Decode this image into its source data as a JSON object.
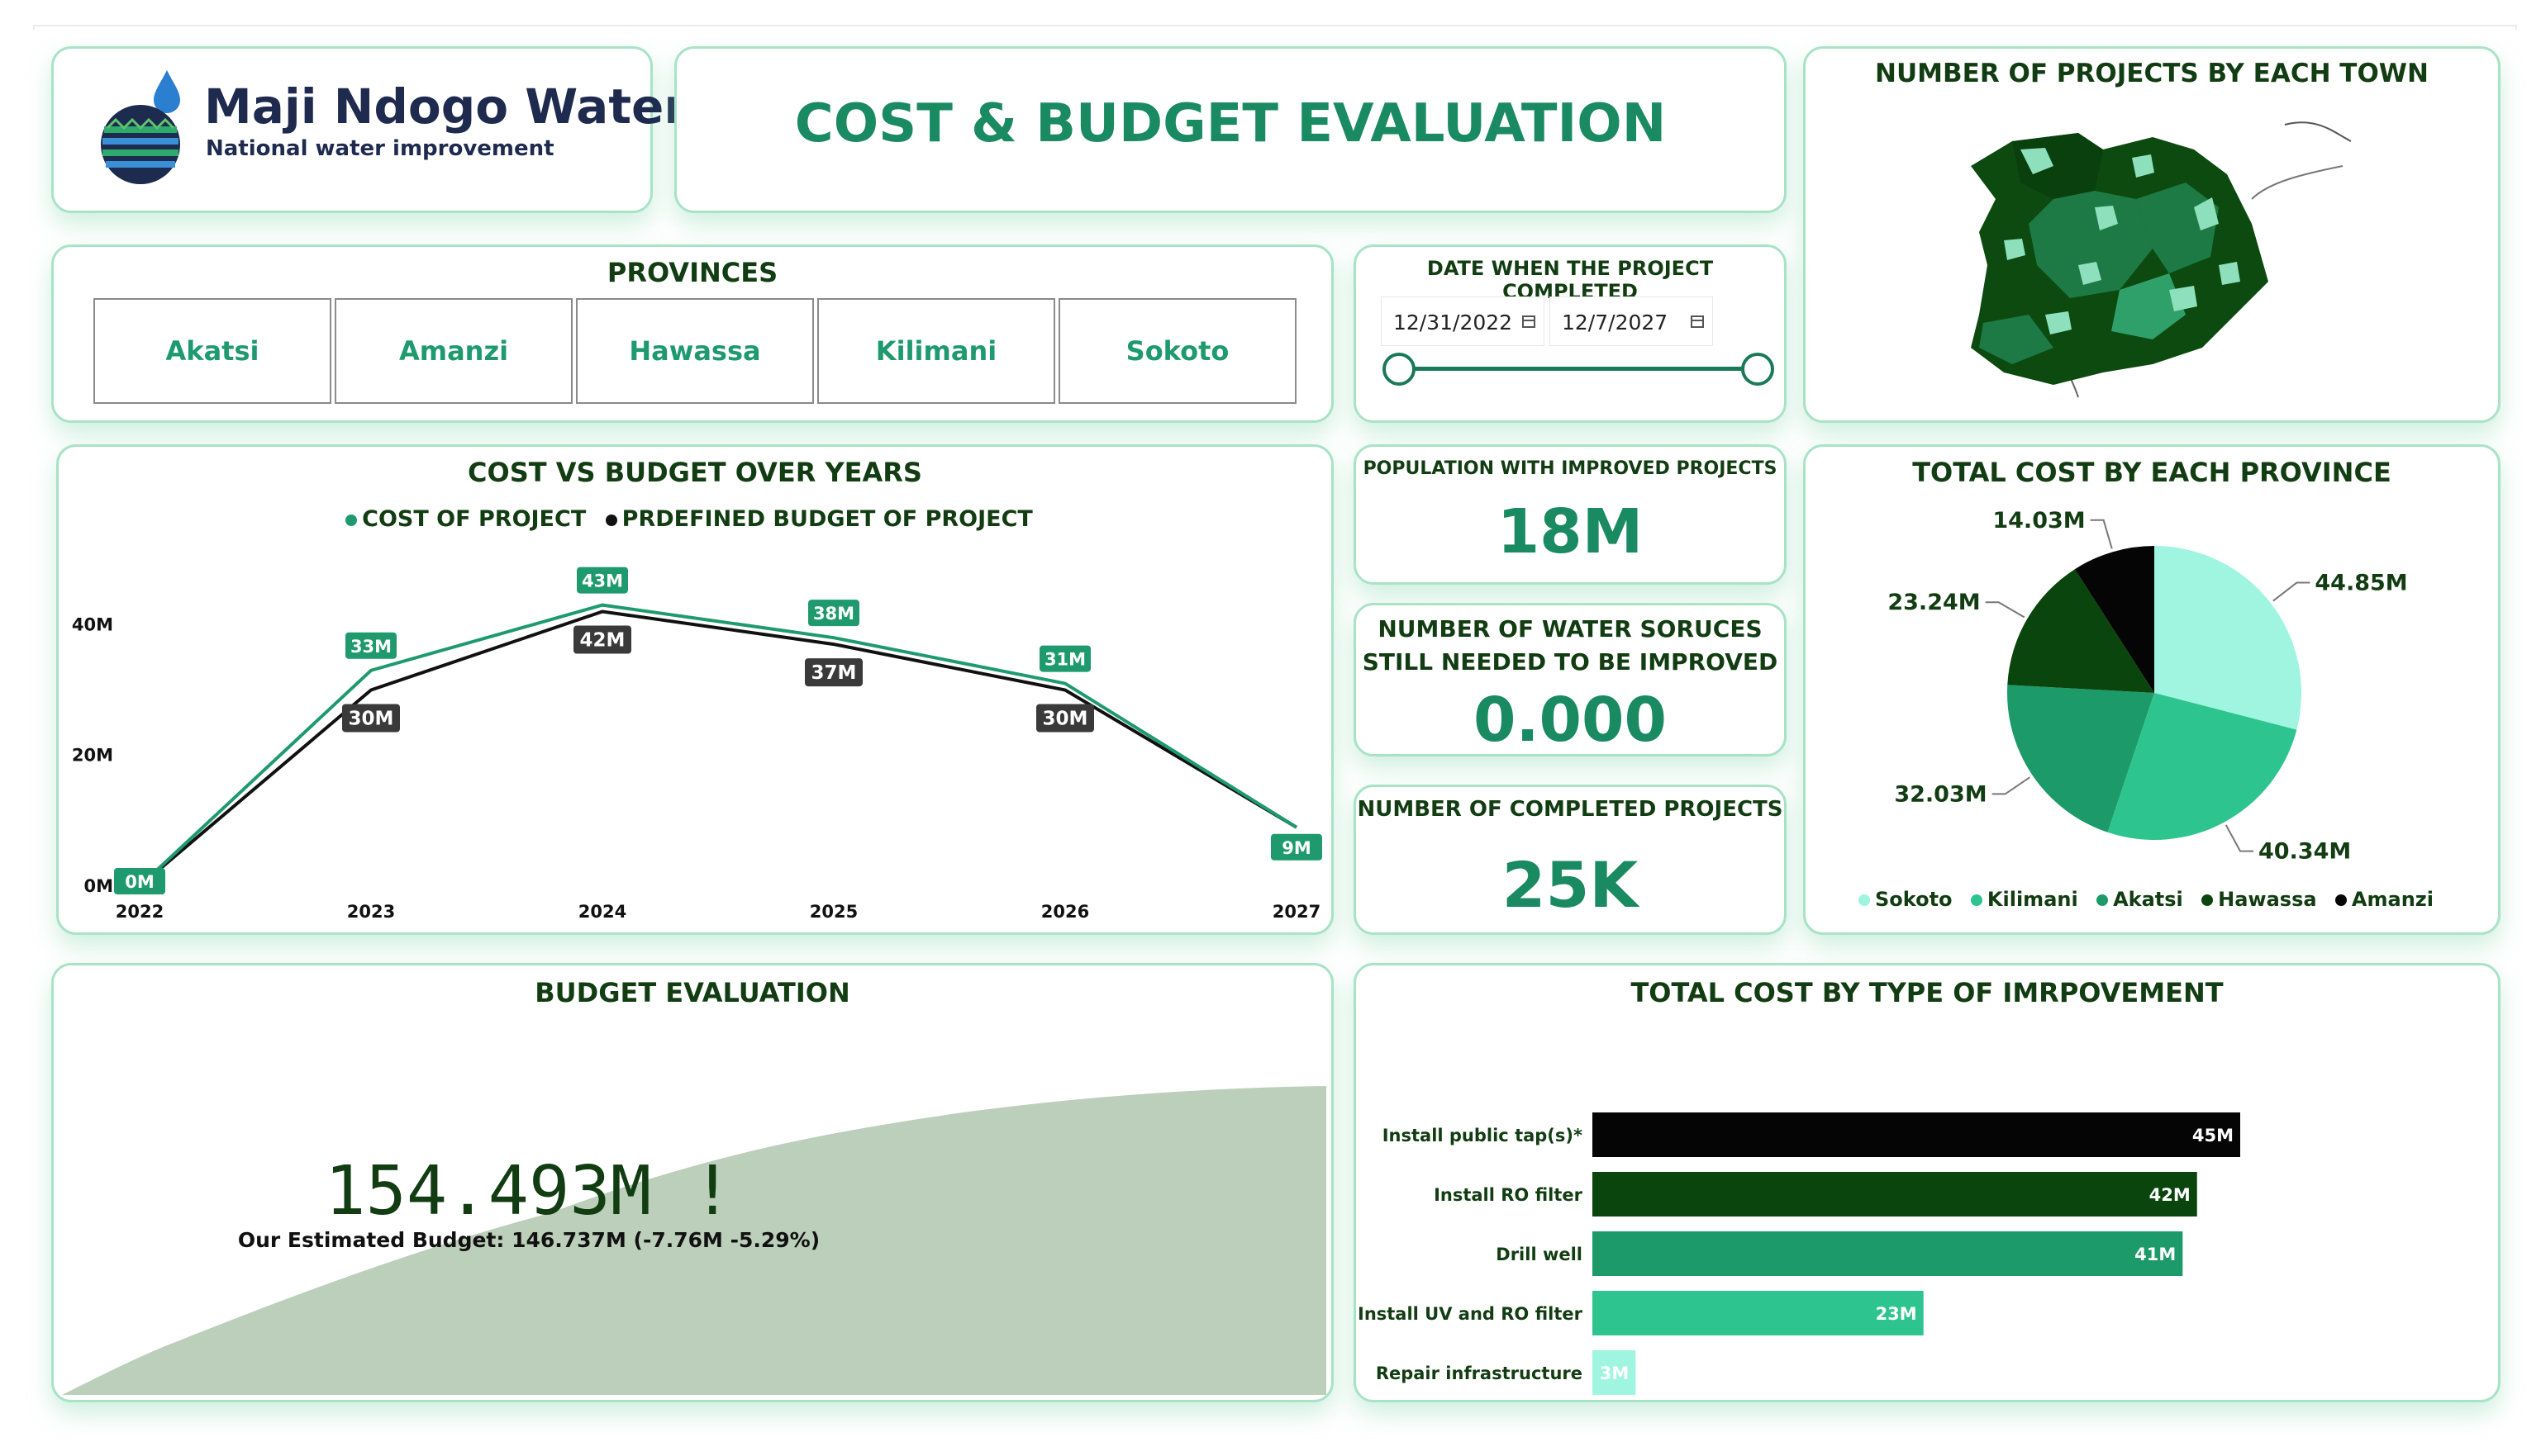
{
  "brand": {
    "name": "Maji Ndogo Water",
    "tagline": "National water improvement"
  },
  "page_title": "COST & BUDGET EVALUATION",
  "provinces": {
    "title": "PROVINCES",
    "items": [
      "Akatsi",
      "Amanzi",
      "Hawassa",
      "Kilimani",
      "Sokoto"
    ]
  },
  "date_filter": {
    "title": "DATE WHEN THE PROJECT COMPLETED",
    "start": "12/31/2022",
    "end": "12/7/2027"
  },
  "kpis": {
    "population": {
      "title": "POPULATION WITH IMPROVED PROJECTS",
      "value": "18M"
    },
    "sources": {
      "title_line1": "NUMBER OF WATER SORUCES",
      "title_line2": "STILL NEEDED TO BE IMPROVED",
      "value": "0.000"
    },
    "completed": {
      "title": "NUMBER OF COMPLETED PROJECTS",
      "value": "25K"
    }
  },
  "map": {
    "title": "NUMBER OF PROJECTS BY EACH TOWN",
    "colors": [
      "#0c4a10",
      "#1e7a45",
      "#8ee0bd",
      "#2fa06a",
      "#0a3f0e"
    ]
  },
  "budget_eval": {
    "title": "BUDGET EVALUATION",
    "value": "154.493M !",
    "subtitle": "Our Estimated Budget: 146.737M (-7.76M -5.29%)",
    "fill_color": "#bccfba"
  },
  "chart_data": [
    {
      "type": "line",
      "title": "COST VS BUDGET OVER YEARS",
      "x": [
        "2022",
        "2023",
        "2024",
        "2025",
        "2026",
        "2027"
      ],
      "y_ticks": [
        "0M",
        "20M",
        "40M"
      ],
      "ylim": [
        0,
        48
      ],
      "series": [
        {
          "name": "COST OF PROJECT",
          "color": "#1e9a6e",
          "values": [
            0,
            33,
            43,
            38,
            31,
            9
          ],
          "labels": [
            "0M",
            "33M",
            "43M",
            "38M",
            "31M",
            "9M"
          ]
        },
        {
          "name": "PRDEFINED BUDGET OF PROJECT",
          "color": "#111111",
          "values": [
            0,
            30,
            42,
            37,
            30,
            9
          ],
          "labels": [
            "",
            "30M",
            "42M",
            "37M",
            "30M",
            ""
          ]
        }
      ]
    },
    {
      "type": "pie",
      "title": "TOTAL COST BY EACH PROVINCE",
      "slices": [
        {
          "name": "Sokoto",
          "value": 44.85,
          "label": "44.85M",
          "color": "#9ff5df"
        },
        {
          "name": "Kilimani",
          "value": 40.34,
          "label": "40.34M",
          "color": "#2ec48f"
        },
        {
          "name": "Akatsi",
          "value": 32.03,
          "label": "32.03M",
          "color": "#1c9a69"
        },
        {
          "name": "Hawassa",
          "value": 23.24,
          "label": "23.24M",
          "color": "#0a450d"
        },
        {
          "name": "Amanzi",
          "value": 14.03,
          "label": "14.03M",
          "color": "#050505"
        }
      ]
    },
    {
      "type": "bar",
      "orientation": "horizontal",
      "title": "TOTAL COST BY TYPE OF IMRPOVEMENT",
      "categories": [
        "Install public tap(s)*",
        "Install RO filter",
        "Drill well",
        "Install UV and RO filter",
        "Repair infrastructure"
      ],
      "values": [
        45,
        42,
        41,
        23,
        3
      ],
      "labels": [
        "45M",
        "42M",
        "41M",
        "23M",
        "3M"
      ],
      "colors": [
        "#050505",
        "#0a450d",
        "#1c9a69",
        "#2ec48f",
        "#9ff5df"
      ],
      "x_ticks": [
        "0M",
        "10M",
        "20M",
        "30M",
        "40M"
      ],
      "xlim": [
        0,
        45
      ]
    }
  ]
}
